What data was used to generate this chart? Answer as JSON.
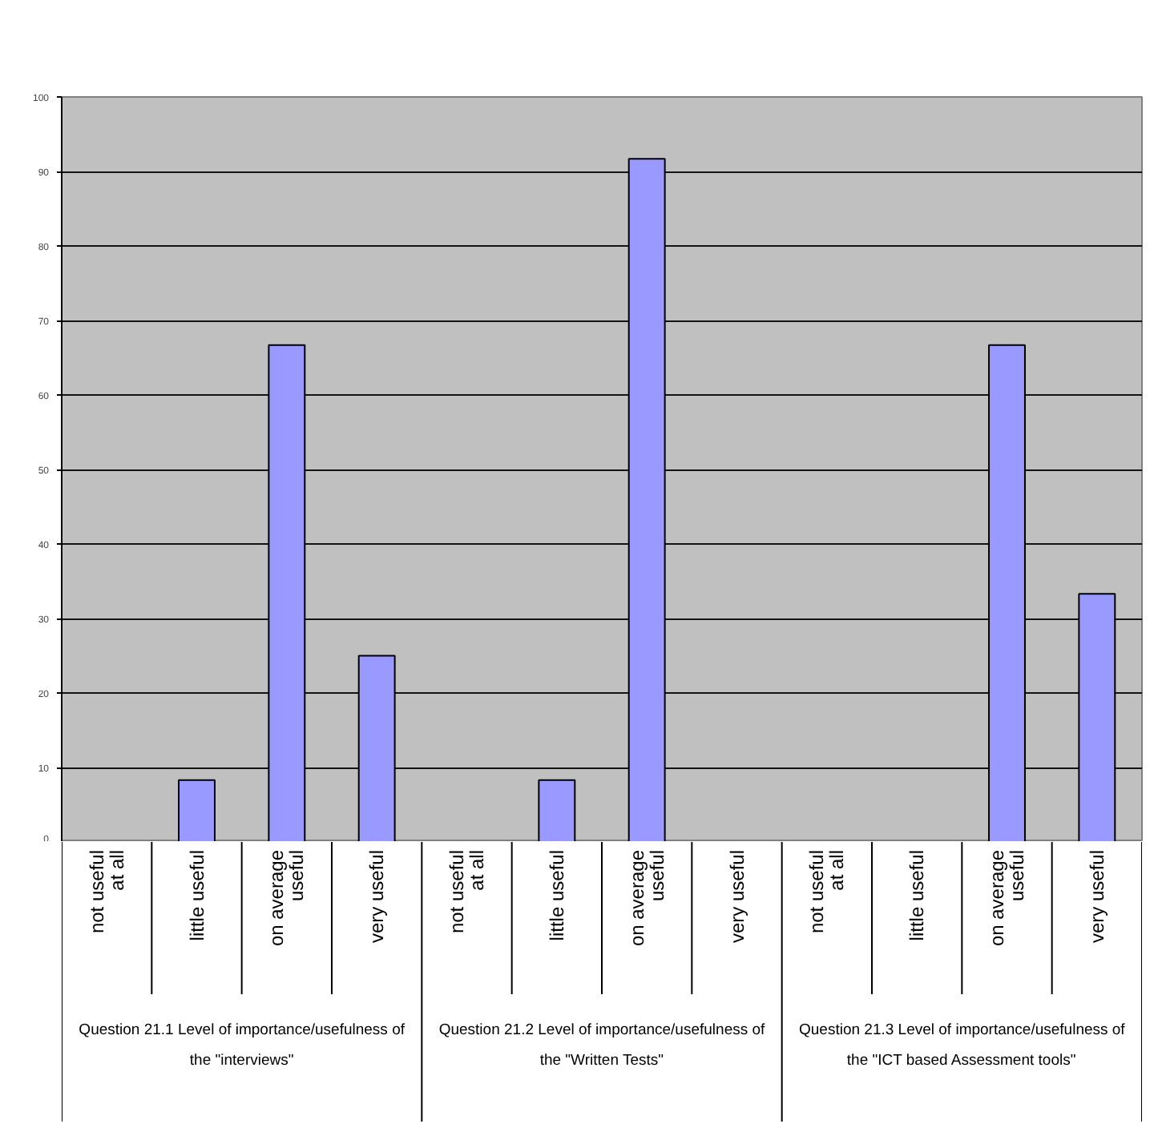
{
  "chart_data": {
    "type": "bar",
    "categories": [
      "not useful at all",
      "little useful",
      "on average useful",
      "very useful",
      "not useful at all",
      "little useful",
      "on average useful",
      "very useful",
      "not useful at all",
      "little useful",
      "on average useful",
      "very useful"
    ],
    "values": [
      0,
      8.3,
      66.7,
      25,
      0,
      8.3,
      91.7,
      0,
      0,
      0,
      66.7,
      33.3
    ],
    "color": "#9999ff",
    "ylim": [
      0,
      100
    ],
    "yticks": [
      0,
      10,
      20,
      30,
      40,
      50,
      60,
      70,
      80,
      90,
      100
    ],
    "grid": "y",
    "annotations": [
      "Question 21.1 Level of importance/usefulness of the \"interviews\"",
      "Question 21.2 Level of importance/usefulness of the \"Written Tests\"",
      "Question 21.3 Level of importance/usefulness of the \"ICT based Assessment tools\""
    ]
  }
}
